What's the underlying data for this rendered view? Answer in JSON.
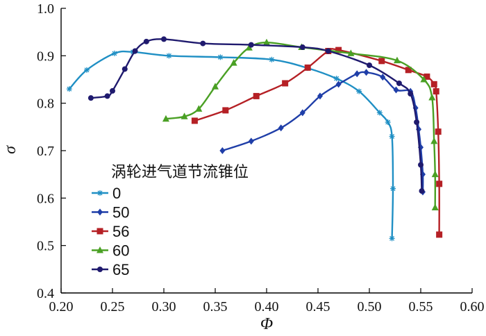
{
  "chart_data": {
    "type": "line",
    "xlabel": "Φ",
    "ylabel": "σ",
    "xlim": [
      0.2,
      0.6
    ],
    "ylim": [
      0.4,
      1.0
    ],
    "xticks": [
      "0.20",
      "0.25",
      "0.30",
      "0.35",
      "0.40",
      "0.45",
      "0.50",
      "0.55",
      "0.60"
    ],
    "yticks": [
      "0.4",
      "0.5",
      "0.6",
      "0.7",
      "0.8",
      "0.9",
      "1.0"
    ],
    "grid": false,
    "legend": {
      "title": "涡轮进气道节流锥位",
      "placement": "left-center"
    },
    "series": [
      {
        "name": "0",
        "color": "#1f8fc4",
        "marker": "asterisk",
        "points": [
          [
            0.208,
            0.83
          ],
          [
            0.225,
            0.87
          ],
          [
            0.252,
            0.905
          ],
          [
            0.27,
            0.908
          ],
          [
            0.305,
            0.9
          ],
          [
            0.355,
            0.897
          ],
          [
            0.405,
            0.892
          ],
          [
            0.44,
            0.874
          ],
          [
            0.468,
            0.852
          ],
          [
            0.49,
            0.825
          ],
          [
            0.51,
            0.78
          ],
          [
            0.518,
            0.76
          ],
          [
            0.522,
            0.73
          ],
          [
            0.523,
            0.62
          ],
          [
            0.522,
            0.515
          ]
        ]
      },
      {
        "name": "50",
        "color": "#1f3ea8",
        "marker": "diamond",
        "points": [
          [
            0.357,
            0.7
          ],
          [
            0.385,
            0.72
          ],
          [
            0.414,
            0.748
          ],
          [
            0.435,
            0.78
          ],
          [
            0.452,
            0.815
          ],
          [
            0.47,
            0.84
          ],
          [
            0.488,
            0.862
          ],
          [
            0.497,
            0.865
          ],
          [
            0.513,
            0.855
          ],
          [
            0.526,
            0.828
          ],
          [
            0.54,
            0.825
          ],
          [
            0.545,
            0.79
          ],
          [
            0.548,
            0.745
          ],
          [
            0.55,
            0.707
          ],
          [
            0.552,
            0.65
          ],
          [
            0.552,
            0.613
          ]
        ]
      },
      {
        "name": "56",
        "color": "#b52025",
        "marker": "square",
        "points": [
          [
            0.33,
            0.763
          ],
          [
            0.36,
            0.785
          ],
          [
            0.39,
            0.815
          ],
          [
            0.418,
            0.842
          ],
          [
            0.44,
            0.875
          ],
          [
            0.46,
            0.91
          ],
          [
            0.47,
            0.912
          ],
          [
            0.512,
            0.889
          ],
          [
            0.538,
            0.87
          ],
          [
            0.556,
            0.856
          ],
          [
            0.563,
            0.84
          ],
          [
            0.565,
            0.825
          ],
          [
            0.567,
            0.74
          ],
          [
            0.568,
            0.63
          ],
          [
            0.568,
            0.523
          ]
        ]
      },
      {
        "name": "60",
        "color": "#4aa024",
        "marker": "triangle",
        "points": [
          [
            0.302,
            0.767
          ],
          [
            0.32,
            0.772
          ],
          [
            0.334,
            0.788
          ],
          [
            0.35,
            0.835
          ],
          [
            0.368,
            0.885
          ],
          [
            0.383,
            0.917
          ],
          [
            0.4,
            0.928
          ],
          [
            0.434,
            0.918
          ],
          [
            0.482,
            0.905
          ],
          [
            0.527,
            0.89
          ],
          [
            0.553,
            0.85
          ],
          [
            0.561,
            0.812
          ],
          [
            0.563,
            0.72
          ],
          [
            0.564,
            0.65
          ],
          [
            0.564,
            0.58
          ]
        ]
      },
      {
        "name": "65",
        "color": "#1f1a6e",
        "marker": "circle",
        "points": [
          [
            0.229,
            0.811
          ],
          [
            0.245,
            0.815
          ],
          [
            0.25,
            0.826
          ],
          [
            0.262,
            0.872
          ],
          [
            0.272,
            0.91
          ],
          [
            0.283,
            0.93
          ],
          [
            0.3,
            0.935
          ],
          [
            0.338,
            0.926
          ],
          [
            0.385,
            0.923
          ],
          [
            0.435,
            0.918
          ],
          [
            0.46,
            0.91
          ],
          [
            0.5,
            0.88
          ],
          [
            0.529,
            0.842
          ],
          [
            0.54,
            0.82
          ],
          [
            0.546,
            0.76
          ],
          [
            0.55,
            0.67
          ],
          [
            0.551,
            0.615
          ]
        ]
      }
    ]
  }
}
